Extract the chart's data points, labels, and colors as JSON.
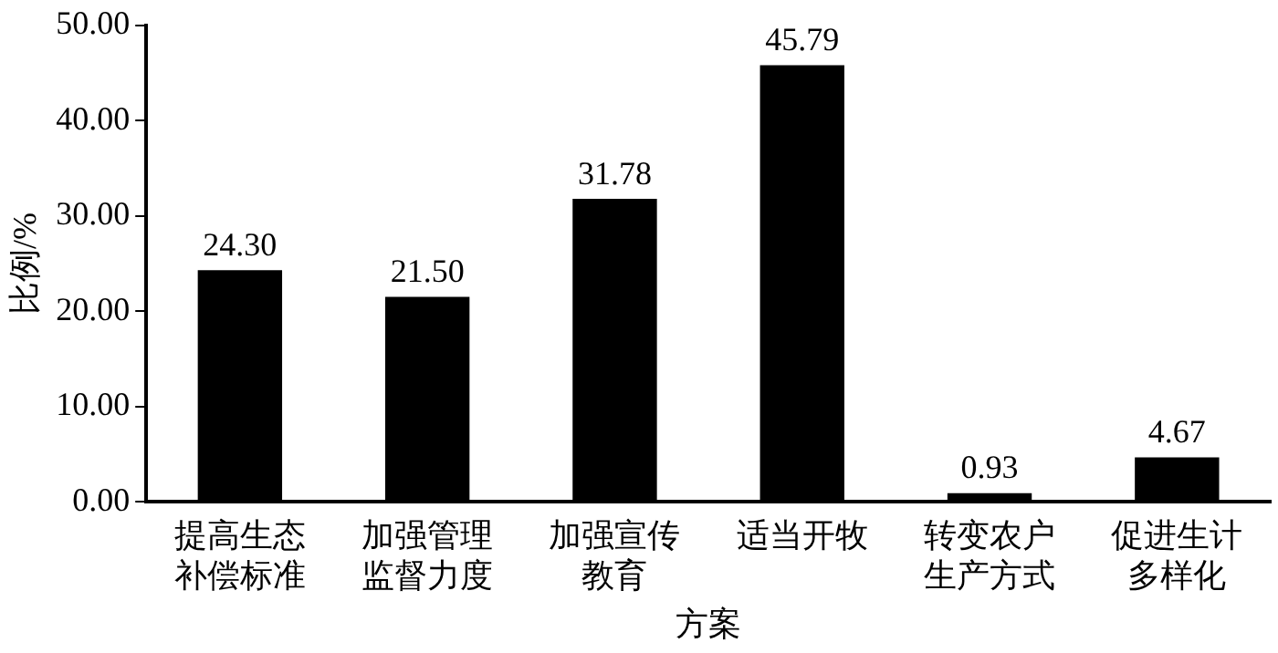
{
  "chart_data": {
    "type": "bar",
    "xlabel": "方案",
    "ylabel": "比例/%",
    "categories": [
      "提高生态补偿标准",
      "加强管理监督力度",
      "加强宣传教育",
      "适当开牧",
      "转变农户生产方式",
      "促进生计多样化"
    ],
    "values": [
      24.3,
      21.5,
      31.78,
      45.79,
      0.93,
      4.67
    ],
    "value_labels": [
      "24.30",
      "21.50",
      "31.78",
      "45.79",
      "0.93",
      "4.67"
    ],
    "color": "#000000",
    "ylim": [
      0,
      50
    ],
    "yticks": [
      {
        "value": 0,
        "label": "0.00"
      },
      {
        "value": 10,
        "label": "10.00"
      },
      {
        "value": 20,
        "label": "20.00"
      },
      {
        "value": 30,
        "label": "30.00"
      },
      {
        "value": 40,
        "label": "40.00"
      },
      {
        "value": 50,
        "label": "50.00"
      }
    ],
    "grid": false,
    "legend": false
  }
}
